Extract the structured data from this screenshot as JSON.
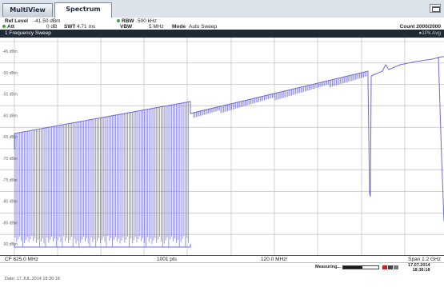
{
  "tabs": [
    {
      "label": "MultiView",
      "active": false
    },
    {
      "label": "Spectrum",
      "active": true
    }
  ],
  "params": {
    "ref_level_label": "Ref Level",
    "ref_level_value": "-41.50 dBm",
    "att_label": "Att",
    "att_value": "0 dB",
    "swt_label": "SWT",
    "swt_value": "4.71 ms",
    "rbw_label": "RBW",
    "rbw_value": "500 kHz",
    "vbw_label": "VBW",
    "vbw_value": "5 MHz",
    "mode_label": "Mode",
    "mode_value": "Auto Sweep",
    "count_label": "Count",
    "count_value": "2000/2000"
  },
  "trace_bar": {
    "title": "1 Frequency Sweep",
    "mode": "●1Pk Avg"
  },
  "y_axis": {
    "tick_labels": [
      "-45 dBm",
      "-50 dBm",
      "-55 dBm",
      "-60 dBm",
      "-65 dBm",
      "-70 dBm",
      "-75 dBm",
      "-80 dBm",
      "-85 dBm",
      "-90 dBm"
    ]
  },
  "bottom_bar": {
    "center_freq": "CF 625.0 MHz",
    "points": "1001 pts",
    "div": "120.0 MHz/",
    "span": "Span 1.2 GHz"
  },
  "status": {
    "measuring_label": "Measuring...",
    "measuring_progress": 0.55,
    "date": "17.07.2014",
    "time": "18:36:18"
  },
  "footer": {
    "text": "Date: 17.JUL.2014  18:36:18"
  },
  "colors": {
    "trace": "#6e6ad1",
    "grid": "#b5b5b5",
    "title_bar": "#1f2a36",
    "status_led": "#c5211e"
  }
}
